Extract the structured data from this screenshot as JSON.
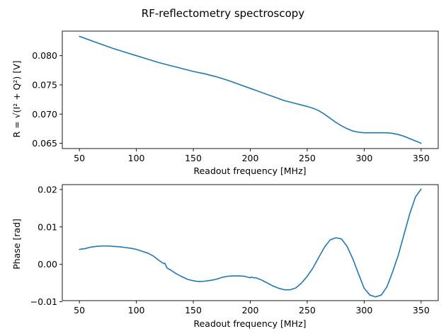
{
  "title": "RF-reflectometry spectroscopy",
  "chart_data": [
    {
      "type": "line",
      "title": "",
      "xlabel": "Readout frequency [MHz]",
      "ylabel": "R = √(I² + Q²) [V]",
      "xlim": [
        35,
        365
      ],
      "ylim": [
        0.0641,
        0.0842
      ],
      "xticks": [
        50,
        100,
        150,
        200,
        250,
        300,
        350
      ],
      "yticks": [
        0.065,
        0.07,
        0.075,
        0.08
      ],
      "ytick_labels": [
        "0.065",
        "0.070",
        "0.075",
        "0.080"
      ],
      "grid": false,
      "color": "#1f77b4",
      "series": [
        {
          "x": [
            50,
            60,
            70,
            80,
            90,
            100,
            110,
            120,
            130,
            140,
            150,
            160,
            170,
            180,
            190,
            200,
            210,
            220,
            230,
            240,
            250,
            255,
            260,
            265,
            270,
            275,
            280,
            285,
            290,
            295,
            300,
            305,
            310,
            315,
            320,
            325,
            330,
            335,
            340,
            345,
            350
          ],
          "y": [
            0.0833,
            0.0826,
            0.0819,
            0.0812,
            0.0806,
            0.08,
            0.0794,
            0.0788,
            0.0783,
            0.0778,
            0.0773,
            0.0769,
            0.0764,
            0.0758,
            0.0751,
            0.0744,
            0.0737,
            0.073,
            0.0723,
            0.0718,
            0.0713,
            0.071,
            0.0706,
            0.07,
            0.0693,
            0.0686,
            0.068,
            0.0675,
            0.0671,
            0.0669,
            0.0668,
            0.0668,
            0.0668,
            0.0668,
            0.0668,
            0.0667,
            0.0665,
            0.0662,
            0.0658,
            0.0654,
            0.065
          ]
        }
      ]
    },
    {
      "type": "line",
      "title": "",
      "xlabel": "Readout frequency [MHz]",
      "ylabel": "Phase [rad]",
      "xlim": [
        35,
        365
      ],
      "ylim": [
        -0.0097,
        0.0213
      ],
      "xticks": [
        50,
        100,
        150,
        200,
        250,
        300,
        350
      ],
      "yticks": [
        -0.01,
        0.0,
        0.01,
        0.02
      ],
      "ytick_labels": [
        "−0.01",
        "0.00",
        "0.01",
        "0.02"
      ],
      "grid": false,
      "color": "#1f77b4",
      "series": [
        {
          "x": [
            50,
            55,
            60,
            65,
            70,
            75,
            80,
            85,
            90,
            95,
            100,
            105,
            110,
            115,
            120,
            124,
            125,
            127,
            130,
            135,
            140,
            145,
            150,
            155,
            160,
            165,
            170,
            175,
            180,
            185,
            190,
            195,
            200,
            201,
            203,
            205,
            210,
            215,
            220,
            225,
            230,
            235,
            240,
            245,
            250,
            255,
            260,
            265,
            270,
            275,
            280,
            285,
            290,
            295,
            300,
            305,
            310,
            315,
            320,
            325,
            330,
            335,
            340,
            345,
            350
          ],
          "y": [
            0.004,
            0.0042,
            0.0046,
            0.0048,
            0.0049,
            0.0049,
            0.0048,
            0.0047,
            0.0045,
            0.0043,
            0.004,
            0.0035,
            0.003,
            0.0022,
            0.001,
            0.0002,
            0.0003,
            -0.001,
            -0.0015,
            -0.0025,
            -0.0033,
            -0.004,
            -0.0044,
            -0.0046,
            -0.0045,
            -0.0043,
            -0.004,
            -0.0035,
            -0.0032,
            -0.0031,
            -0.0031,
            -0.0032,
            -0.0036,
            -0.0034,
            -0.0036,
            -0.0036,
            -0.0042,
            -0.005,
            -0.0058,
            -0.0064,
            -0.0068,
            -0.0068,
            -0.0063,
            -0.005,
            -0.0032,
            -0.001,
            0.0018,
            0.0045,
            0.0065,
            0.0071,
            0.0068,
            0.0048,
            0.0015,
            -0.0025,
            -0.0064,
            -0.0082,
            -0.0087,
            -0.0082,
            -0.006,
            -0.002,
            0.0025,
            0.008,
            0.0135,
            0.018,
            0.0201
          ]
        }
      ]
    }
  ]
}
